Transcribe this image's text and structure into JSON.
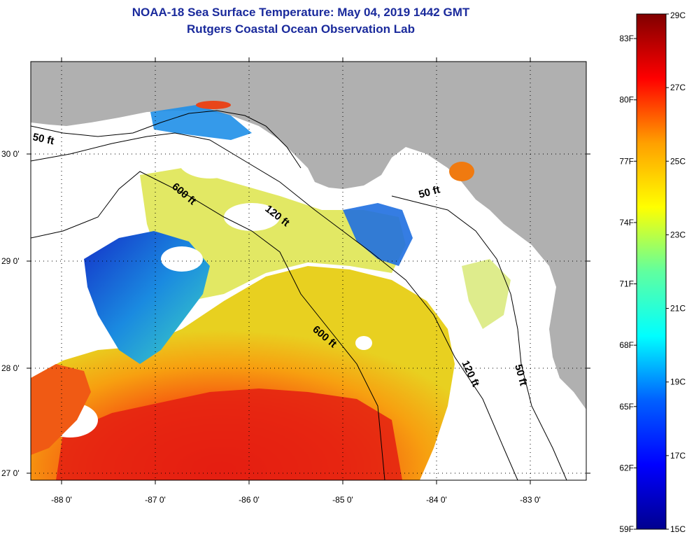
{
  "title": "NOAA-18 Sea Surface Temperature:  May 04, 2019 1442 GMT",
  "subtitle": "Rutgers Coastal Ocean Observation Lab",
  "map": {
    "lat_labels": [
      "30 0'",
      "29 0'",
      "28 0'",
      "27 0'"
    ],
    "lon_labels": [
      "-88 0'",
      "-87 0'",
      "-86 0'",
      "-85 0'",
      "-84 0'",
      "-83 0'"
    ],
    "contour_labels": [
      "50 ft",
      "600 ft",
      "120 ft",
      "50 ft",
      "600 ft",
      "120 ft",
      "50 ft"
    ],
    "land_color": "#b0b0b0",
    "cloud_color": "#ffffff"
  },
  "colorbar": {
    "fahrenheit_labels": [
      "83F",
      "80F",
      "77F",
      "74F",
      "71F",
      "68F",
      "65F",
      "62F",
      "59F"
    ],
    "celsius_labels": [
      "29C",
      "27C",
      "25C",
      "23C",
      "21C",
      "19C",
      "17C",
      "15C"
    ],
    "min_c": 15,
    "max_c": 29
  }
}
